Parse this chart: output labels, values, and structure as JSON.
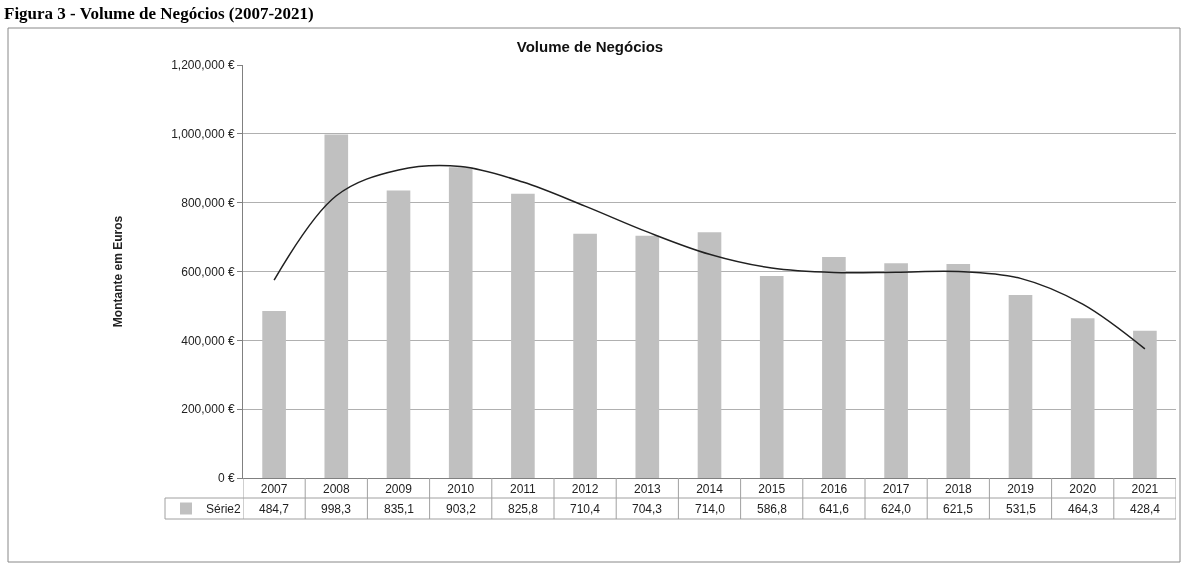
{
  "chart_data": {
    "type": "bar",
    "title": "Volume de Negócios",
    "ylabel": "Montante em Euros",
    "annotations": [
      "Figura 3 - Volume de Negócios (2007-2021)",
      "484,7",
      "998,3",
      "835,1",
      "903,2",
      "825,8",
      "710,4",
      "704,3",
      "714,0",
      "586,8",
      "641,6",
      "624,0",
      "621,5",
      "531,5",
      "464,3",
      "428,4"
    ],
    "categories": [
      "2007",
      "2008",
      "2009",
      "2010",
      "2011",
      "2012",
      "2013",
      "2014",
      "2015",
      "2016",
      "2017",
      "2018",
      "2019",
      "2020",
      "2021"
    ],
    "series": [
      {
        "name": "Série2",
        "color": "#c0c0c0",
        "values": [
          485000,
          998000,
          835000,
          903000,
          826000,
          710000,
          704000,
          714000,
          587000,
          642000,
          624000,
          622000,
          532000,
          464000,
          428000
        ]
      },
      {
        "type": "line",
        "color": "#202020",
        "values": [
          575000,
          820000,
          895000,
          905000,
          860000,
          790000,
          715000,
          650000,
          610000,
          597000,
          598000,
          600000,
          580000,
          505000,
          375000
        ]
      }
    ],
    "ylim": [
      0,
      1200000
    ],
    "yticks": [
      {
        "value": 0,
        "label": "0 €"
      },
      {
        "value": 200000,
        "label": "200,000 €"
      },
      {
        "value": 400000,
        "label": "400,000 €"
      },
      {
        "value": 600000,
        "label": "600,000 €"
      },
      {
        "value": 800000,
        "label": "800,000 €"
      },
      {
        "value": 1000000,
        "label": "1,000,000 €"
      },
      {
        "value": 1200000,
        "label": "1,200,000 €"
      }
    ],
    "grid": "y",
    "legend": "bottom left"
  }
}
